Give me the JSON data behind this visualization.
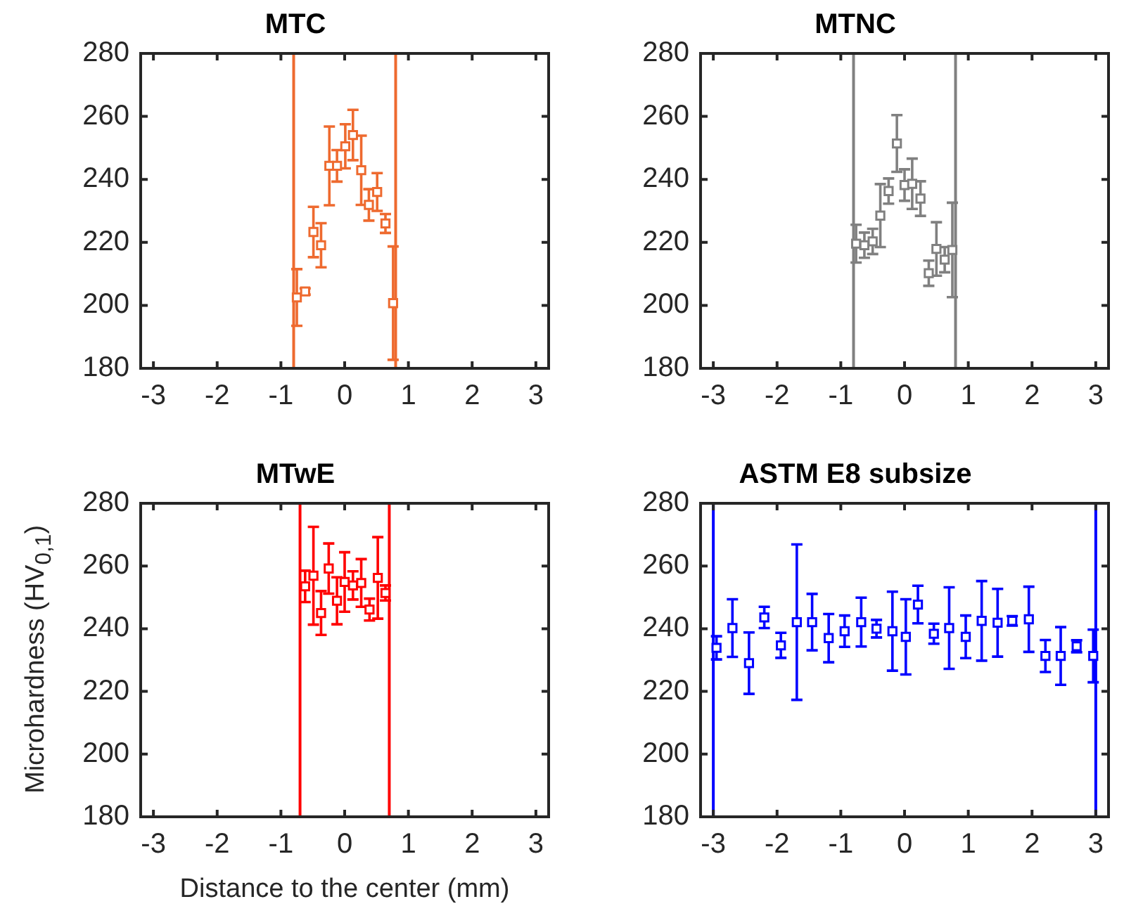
{
  "chart_data": [
    {
      "type": "scatter",
      "title": "MTC",
      "marker": "square",
      "grid": false,
      "legend": false,
      "xlim": [
        -3.2,
        3.2
      ],
      "xticks": [
        -3,
        -2,
        -1,
        0,
        1,
        2,
        3
      ],
      "ylim": [
        180,
        280
      ],
      "yticks": [
        180,
        200,
        220,
        240,
        260,
        280
      ],
      "x": [
        -0.75,
        -0.62,
        -0.49,
        -0.37,
        -0.24,
        -0.12,
        0.01,
        0.13,
        0.26,
        0.38,
        0.51,
        0.64,
        0.76
      ],
      "series": [
        {
          "color": "#ee6a2f",
          "values": [
            202.5,
            204.4,
            223.3,
            219.1,
            244.3,
            244.3,
            250.5,
            254.1,
            242.9,
            231.9,
            236,
            226,
            200.7
          ],
          "errors": [
            9,
            1,
            8,
            7,
            12.5,
            5,
            7,
            8,
            11,
            5,
            6,
            3,
            18
          ]
        }
      ],
      "ref_lines": [
        {
          "axis": "x",
          "value": -0.8,
          "color": "#ee6a2f"
        },
        {
          "axis": "x",
          "value": 0.8,
          "color": "#ee6a2f"
        }
      ]
    },
    {
      "type": "scatter",
      "title": "MTNC",
      "marker": "square",
      "grid": false,
      "legend": false,
      "xlim": [
        -3.2,
        3.2
      ],
      "xticks": [
        -3,
        -2,
        -1,
        0,
        1,
        2,
        3
      ],
      "ylim": [
        180,
        280
      ],
      "yticks": [
        180,
        200,
        220,
        240,
        260,
        280
      ],
      "x": [
        -0.76,
        -0.63,
        -0.5,
        -0.38,
        -0.25,
        -0.12,
        0,
        0.12,
        0.25,
        0.38,
        0.5,
        0.63,
        0.75
      ],
      "series": [
        {
          "color": "#808080",
          "values": [
            219.6,
            219.1,
            220.3,
            228.5,
            236.3,
            251.4,
            238.2,
            238.6,
            233.9,
            210.2,
            217.9,
            214.5,
            217.6
          ],
          "errors": [
            6,
            4,
            4,
            10,
            4,
            9,
            5,
            8,
            5.5,
            4,
            8.5,
            4,
            15
          ]
        }
      ],
      "ref_lines": [
        {
          "axis": "x",
          "value": -0.8,
          "color": "#808080"
        },
        {
          "axis": "x",
          "value": 0.8,
          "color": "#808080"
        }
      ]
    },
    {
      "type": "scatter",
      "title": "MTwE",
      "xlabel": "Distance to the center (mm)",
      "ylabel": "Microhardness (HV$_{0,1}$)",
      "marker": "square",
      "grid": false,
      "legend": false,
      "xlim": [
        -3.2,
        3.2
      ],
      "xticks": [
        -3,
        -2,
        -1,
        0,
        1,
        2,
        3
      ],
      "ylim": [
        180,
        280
      ],
      "yticks": [
        180,
        200,
        220,
        240,
        260,
        280
      ],
      "x": [
        -0.62,
        -0.49,
        -0.37,
        -0.25,
        -0.12,
        0,
        0.13,
        0.26,
        0.39,
        0.52,
        0.64
      ],
      "series": [
        {
          "color": "#ff0000",
          "values": [
            253.5,
            256.9,
            245,
            259.2,
            248.9,
            254.9,
            253.8,
            254.6,
            246.1,
            256.2,
            251.4
          ],
          "errors": [
            5,
            15.6,
            7,
            8,
            7.5,
            9.5,
            4.5,
            7.6,
            3.5,
            13,
            2.4
          ]
        }
      ],
      "ref_lines": [
        {
          "axis": "x",
          "value": -0.7,
          "color": "#ff0000"
        },
        {
          "axis": "x",
          "value": 0.7,
          "color": "#ff0000"
        }
      ]
    },
    {
      "type": "scatter",
      "title": "ASTM E8 subsize",
      "marker": "square",
      "grid": false,
      "legend": false,
      "xlim": [
        -3.2,
        3.2
      ],
      "xticks": [
        -3,
        -2,
        -1,
        0,
        1,
        2,
        3
      ],
      "ylim": [
        180,
        280
      ],
      "yticks": [
        180,
        200,
        220,
        240,
        260,
        280
      ],
      "x": [
        -2.95,
        -2.7,
        -2.44,
        -2.2,
        -1.94,
        -1.69,
        -1.45,
        -1.19,
        -0.94,
        -0.68,
        -0.44,
        -0.19,
        0.02,
        0.21,
        0.46,
        0.7,
        0.96,
        1.21,
        1.46,
        1.69,
        1.95,
        2.21,
        2.45,
        2.7,
        2.96
      ],
      "series": [
        {
          "color": "#0000ff",
          "values": [
            233.9,
            240.2,
            229,
            243.6,
            234.7,
            242.1,
            242.1,
            237,
            239.2,
            242.1,
            240,
            239.2,
            237.4,
            247.7,
            238.4,
            240.2,
            237.4,
            242.5,
            241.9,
            242.5,
            243,
            231.3,
            231.3,
            234.4,
            231.3
          ],
          "errors": [
            3.7,
            9.2,
            9.8,
            3.4,
            4,
            24.8,
            9,
            7.7,
            5,
            7.8,
            2.8,
            12.6,
            12,
            6,
            3.2,
            13,
            6.8,
            12.7,
            10.8,
            1.5,
            10.4,
            5.1,
            9.2,
            1.9,
            8.4
          ]
        }
      ],
      "ref_lines": [
        {
          "axis": "x",
          "value": -3,
          "color": "#0000ff"
        },
        {
          "axis": "x",
          "value": 3,
          "color": "#0000ff"
        }
      ]
    }
  ]
}
